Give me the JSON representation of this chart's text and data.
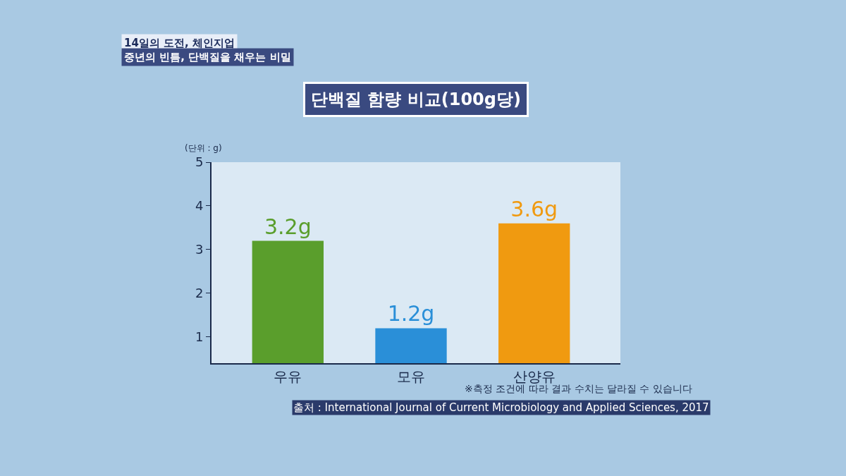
{
  "chart_data": {
    "type": "bar",
    "title": "단백질 함량 비교(100g당)",
    "ylabel": "(단위 : g)",
    "categories": [
      "우유",
      "모유",
      "산양유"
    ],
    "values": [
      3.2,
      1.2,
      3.6
    ],
    "value_labels": [
      "3.2g",
      "1.2g",
      "3.6g"
    ],
    "colors": [
      "#5a9e2c",
      "#2a8fd8",
      "#f09a10"
    ],
    "ylim": [
      0.4,
      5
    ],
    "yticks": [
      1,
      2,
      3,
      4,
      5
    ],
    "grid": false,
    "annotations": [
      "14일의 도전, 체인지업",
      "중년의 빈틈, 단백질을 채우는 비밀",
      "※측정 조건에 따라 결과 수치는 달라질 수 있습니다",
      "출처 : International Journal of Current Microbiology and Applied Sciences, 2017"
    ]
  }
}
